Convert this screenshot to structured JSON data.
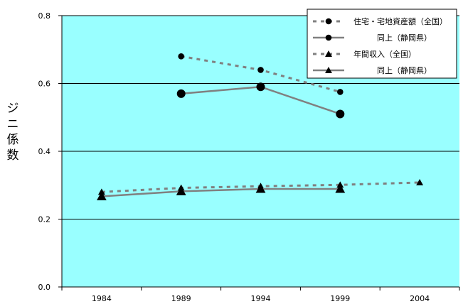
{
  "chart_data": {
    "type": "line",
    "title": "",
    "xlabel": "",
    "ylabel": "ジニ係数",
    "x": [
      "1984",
      "1989",
      "1994",
      "1999",
      "2004"
    ],
    "ylim": [
      0.0,
      0.8
    ],
    "y_ticks": [
      "0.0",
      "0.2",
      "0.4",
      "0.6",
      "0.8"
    ],
    "grid": "horizontal",
    "legend_position": "top-right",
    "plot_background": "#99ffff",
    "series": [
      {
        "name": "住宅・宅地資産額（全国）",
        "values": [
          null,
          0.68,
          0.64,
          0.575,
          null
        ],
        "style": "dashed",
        "marker": "circle",
        "color": "#808080"
      },
      {
        "name": "同上（静岡県）",
        "values": [
          null,
          0.57,
          0.59,
          0.51,
          null
        ],
        "style": "solid",
        "marker": "circle",
        "color": "#808080"
      },
      {
        "name": "年間収入（全国）",
        "values": [
          0.28,
          0.292,
          0.297,
          0.301,
          0.308
        ],
        "style": "dashed",
        "marker": "triangle",
        "color": "#808080"
      },
      {
        "name": "同上（静岡県）",
        "values": [
          0.267,
          0.282,
          0.289,
          0.289,
          null
        ],
        "style": "solid",
        "marker": "triangle",
        "color": "#808080"
      }
    ]
  }
}
